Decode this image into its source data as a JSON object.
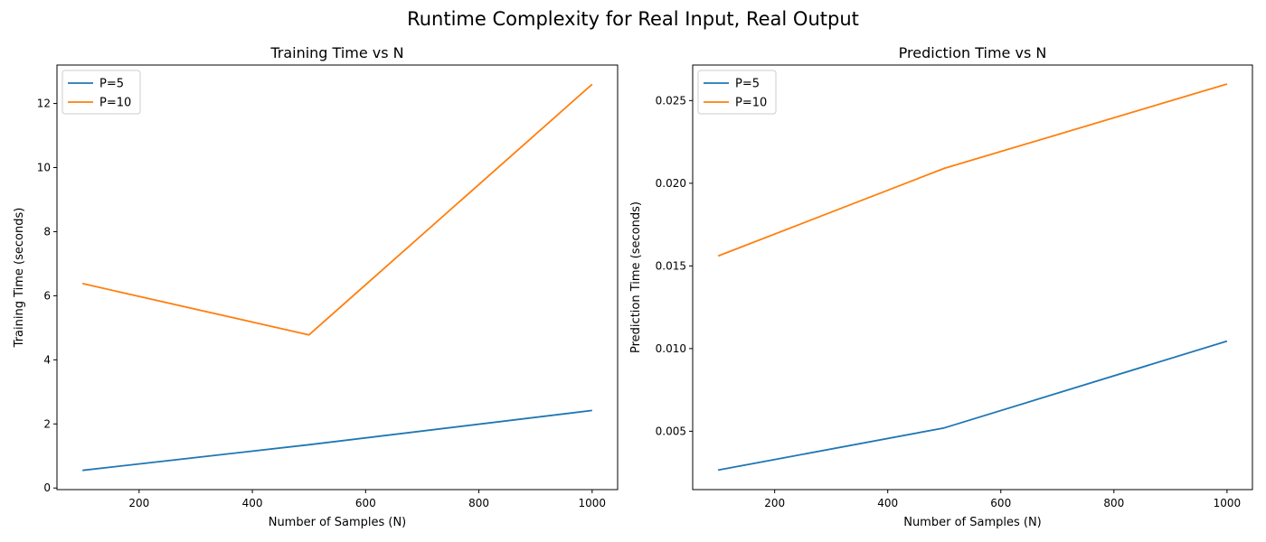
{
  "figure": {
    "suptitle": "Runtime Complexity for Real Input, Real Output"
  },
  "chart_data": [
    {
      "type": "line",
      "title": "Training Time vs N",
      "xlabel": "Number of Samples (N)",
      "ylabel": "Training Time (seconds)",
      "x": [
        100,
        500,
        1000
      ],
      "series": [
        {
          "name": "P=5",
          "color": "#1f77b4",
          "values": [
            0.55,
            1.35,
            2.42
          ]
        },
        {
          "name": "P=10",
          "color": "#ff7f0e",
          "values": [
            6.38,
            4.78,
            12.6
          ]
        }
      ],
      "xlim": [
        55,
        1045
      ],
      "ylim": [
        -0.05,
        13.2
      ],
      "xticks": [
        200,
        400,
        600,
        800,
        1000
      ],
      "yticks": [
        0,
        2,
        4,
        6,
        8,
        10,
        12
      ],
      "xtick_labels": [
        "200",
        "400",
        "600",
        "800",
        "1000"
      ],
      "ytick_labels": [
        "0",
        "2",
        "4",
        "6",
        "8",
        "10",
        "12"
      ],
      "legend": "top-left",
      "grid": false
    },
    {
      "type": "line",
      "title": "Prediction Time vs N",
      "xlabel": "Number of Samples (N)",
      "ylabel": "Prediction Time (seconds)",
      "x": [
        100,
        500,
        1000
      ],
      "series": [
        {
          "name": "P=5",
          "color": "#1f77b4",
          "values": [
            0.00265,
            0.0052,
            0.01045
          ]
        },
        {
          "name": "P=10",
          "color": "#ff7f0e",
          "values": [
            0.0156,
            0.0209,
            0.026
          ]
        }
      ],
      "xlim": [
        55,
        1045
      ],
      "ylim": [
        0.00147,
        0.02715
      ],
      "xticks": [
        200,
        400,
        600,
        800,
        1000
      ],
      "yticks": [
        0.005,
        0.01,
        0.015,
        0.02,
        0.025
      ],
      "xtick_labels": [
        "200",
        "400",
        "600",
        "800",
        "1000"
      ],
      "ytick_labels": [
        "0.005",
        "0.010",
        "0.015",
        "0.020",
        "0.025"
      ],
      "legend": "top-left",
      "grid": false
    }
  ]
}
